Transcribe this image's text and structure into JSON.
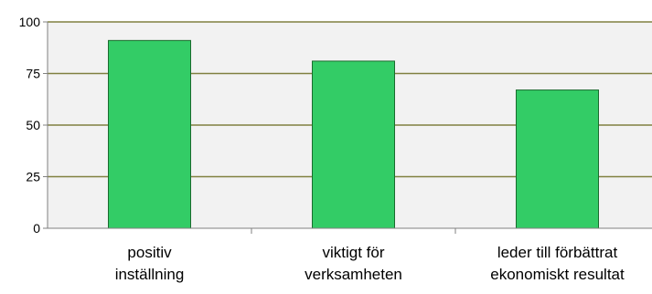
{
  "chart_data": {
    "type": "bar",
    "categories": [
      [
        "positiv",
        "inställning"
      ],
      [
        "viktigt för",
        "verksamheten"
      ],
      [
        "leder till förbättrat",
        "ekonomiskt resultat"
      ]
    ],
    "values": [
      91,
      81,
      67
    ],
    "yticks": [
      0,
      25,
      50,
      75,
      100
    ],
    "ylim": [
      0,
      100
    ],
    "grid": true,
    "colors": {
      "bar_fill": "#33cc66",
      "bar_stroke": "#1a6b2e",
      "plot_background": "#f2f2f2",
      "gridline": "#808040",
      "axis": "#808080"
    }
  }
}
